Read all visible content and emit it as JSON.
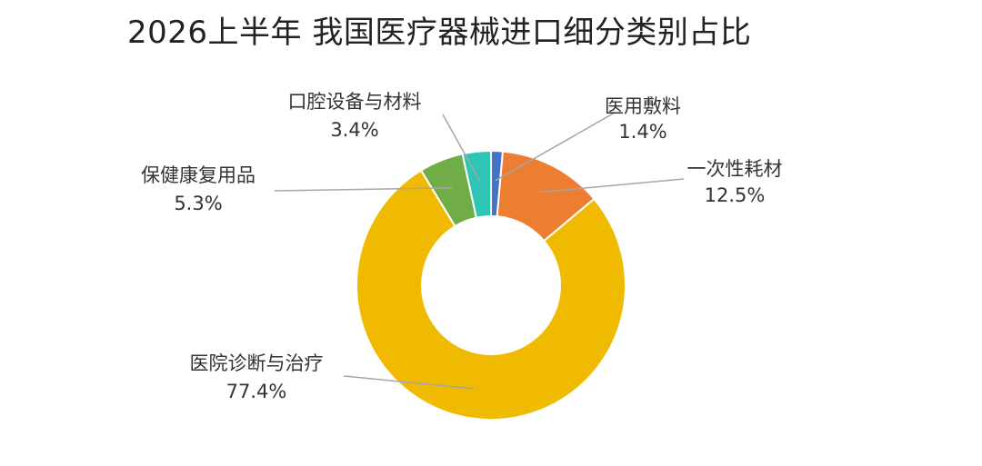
{
  "chart_data": {
    "type": "pie",
    "variant": "donut",
    "title": "2026上半年 我国医疗器械进口细分类别占比",
    "start_angle": "12 o'clock, clockwise",
    "slices": [
      {
        "label": "医用敷料",
        "value": 1.4,
        "display": "1.4%",
        "color": "#4472C4"
      },
      {
        "label": "一次性耗材",
        "value": 12.5,
        "display": "12.5%",
        "color": "#ED7D31"
      },
      {
        "label": "医院诊断与治疗",
        "value": 77.4,
        "display": "77.4%",
        "color": "#F0BA00"
      },
      {
        "label": "保健康复用品",
        "value": 5.3,
        "display": "5.3%",
        "color": "#70AD47"
      },
      {
        "label": "口腔设备与材料",
        "value": 3.4,
        "display": "3.4%",
        "color": "#2EC4B6"
      }
    ],
    "leader_line_color": "#A6A6A6"
  }
}
